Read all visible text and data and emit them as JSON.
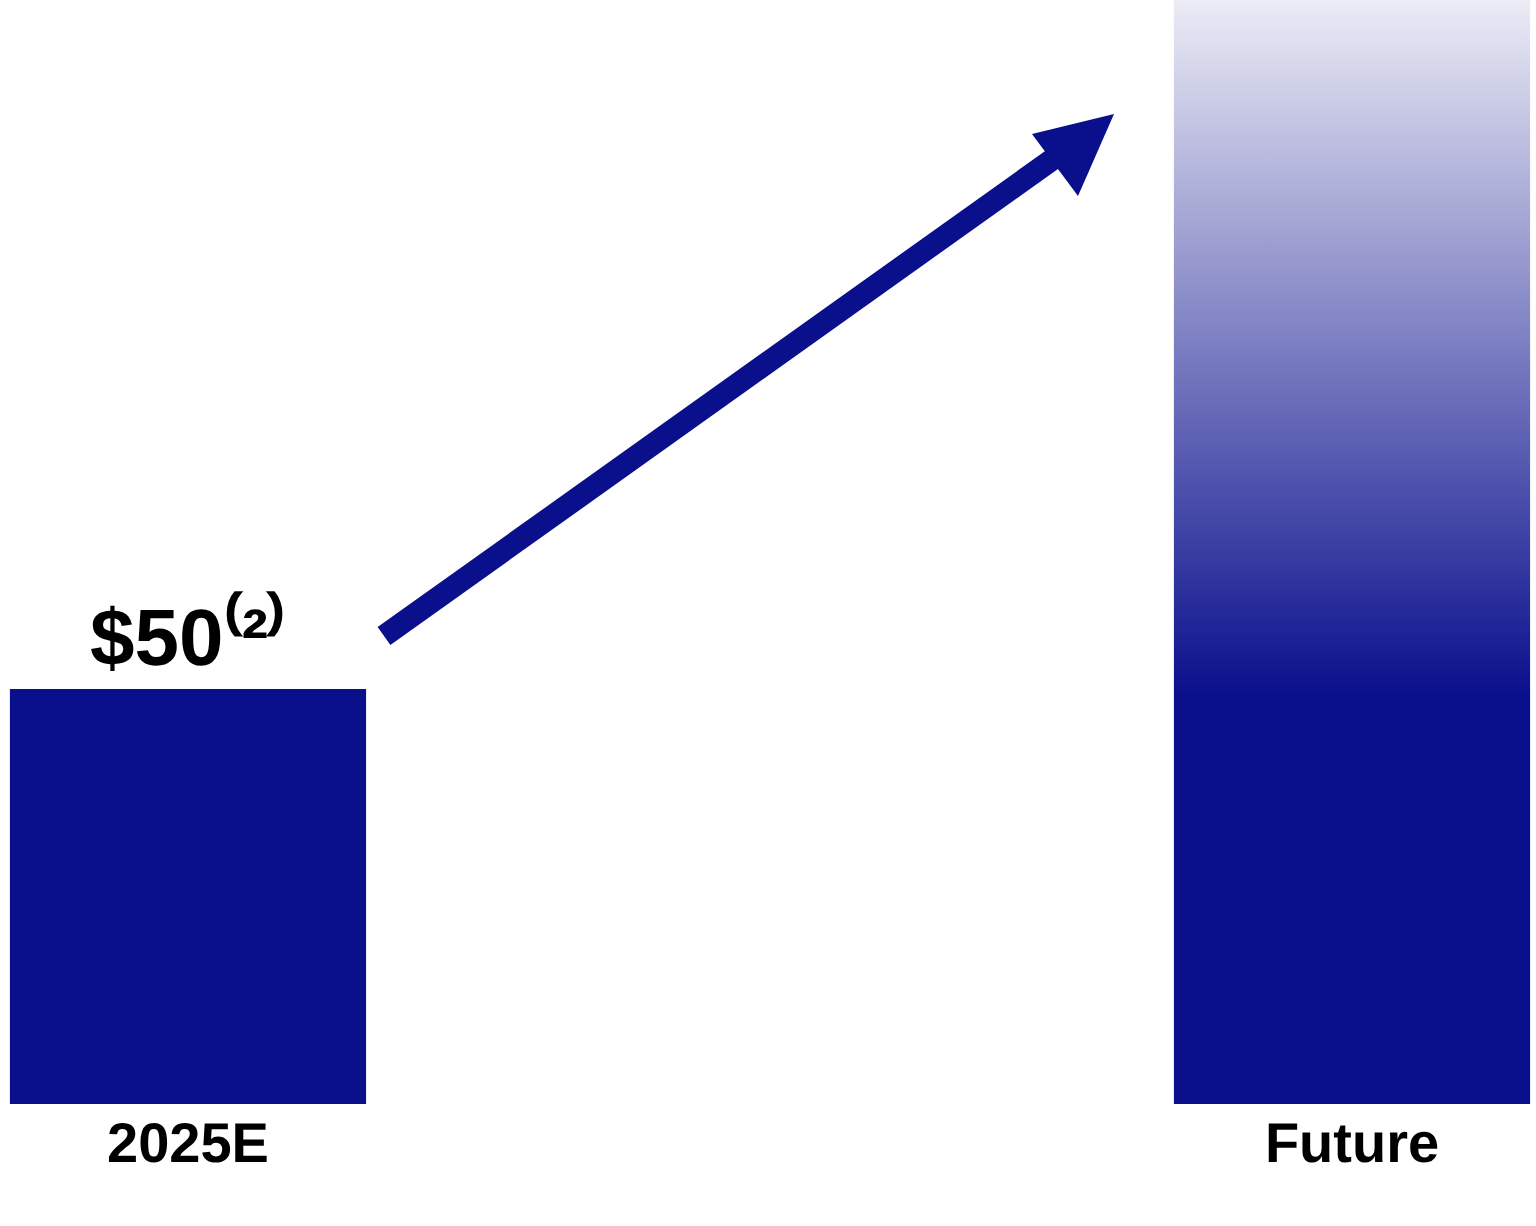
{
  "chart_data": {
    "type": "bar",
    "categories": [
      "2025E",
      "Future"
    ],
    "values": [
      50,
      133
    ],
    "colors": [
      "#0a0f8c",
      "#0a0f8c"
    ],
    "value_labels": [
      "$50⁽²⁾",
      null
    ]
  }
}
